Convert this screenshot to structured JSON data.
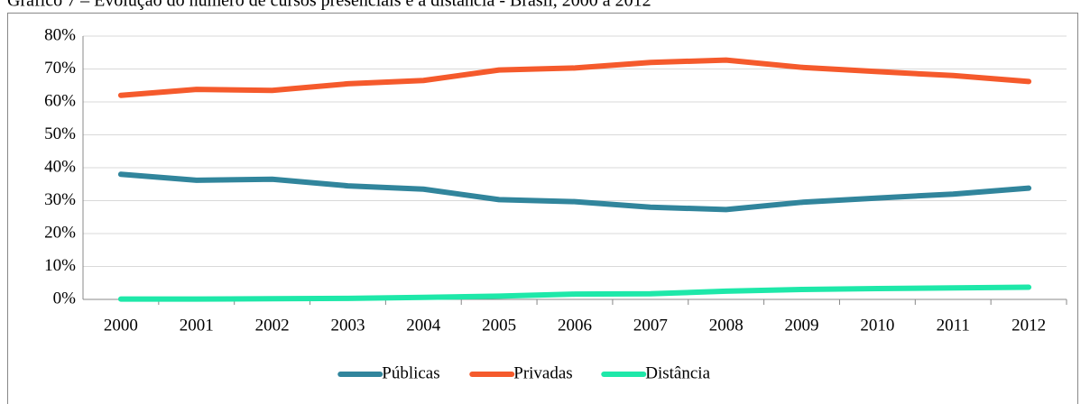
{
  "chart_data": {
    "type": "line",
    "title": "Gráfico 7 – Evolução do número de cursos presenciais e a distância - Brasil, 2000 a 2012",
    "categories": [
      "2000",
      "2001",
      "2002",
      "2003",
      "2004",
      "2005",
      "2006",
      "2007",
      "2008",
      "2009",
      "2010",
      "2011",
      "2012"
    ],
    "series": [
      {
        "name": "Públicas",
        "color": "#31859c",
        "values": [
          38,
          36.2,
          36.5,
          34.5,
          33.5,
          30.3,
          29.7,
          28,
          27.3,
          29.5,
          30.8,
          32,
          33.8
        ]
      },
      {
        "name": "Privadas",
        "color": "#f55a2c",
        "values": [
          62,
          63.8,
          63.5,
          65.5,
          66.5,
          69.7,
          70.3,
          72,
          72.7,
          70.5,
          69.2,
          68,
          66.2
        ]
      },
      {
        "name": "Distância",
        "color": "#1ee8a9",
        "values": [
          0.1,
          0.1,
          0.2,
          0.3,
          0.6,
          1,
          1.6,
          1.7,
          2.5,
          3,
          3.3,
          3.5,
          3.7
        ]
      }
    ],
    "ylim": [
      0,
      80
    ],
    "yticks": [
      {
        "value": 0,
        "label": "0%"
      },
      {
        "value": 10,
        "label": "10%"
      },
      {
        "value": 20,
        "label": "20%"
      },
      {
        "value": 30,
        "label": "30%"
      },
      {
        "value": 40,
        "label": "40%"
      },
      {
        "value": 50,
        "label": "50%"
      },
      {
        "value": 60,
        "label": "60%"
      },
      {
        "value": 70,
        "label": "70%"
      },
      {
        "value": 80,
        "label": "80%"
      }
    ],
    "grid": true,
    "legend": "bottom"
  }
}
